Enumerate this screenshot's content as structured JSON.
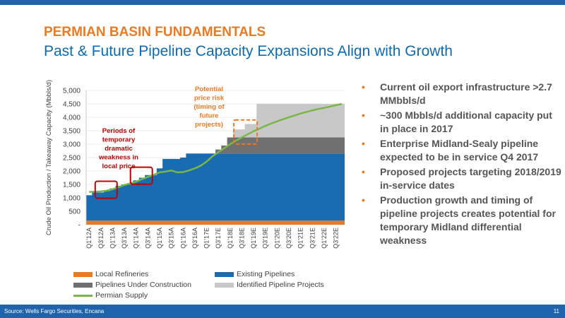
{
  "slide": {
    "title": "PERMIAN BASIN FUNDAMENTALS",
    "subtitle": "Past & Future Pipeline Capacity Expansions Align with Growth",
    "source": "Source: Wells Fargo Securities, Encana",
    "page_number": "11"
  },
  "colors": {
    "accent_orange": "#ec7a22",
    "title_blue": "#0b6cb4",
    "bar_blue": "#1a6cb0",
    "bottom_bar": "#1f63ad",
    "annotation_red": "#c00000"
  },
  "bullets": [
    "Current oil export infrastructure >2.7 MMbbls/d",
    "~300 Mbbls/d additional capacity put in place in 2017",
    "Enterprise Midland-Sealy pipeline expected to be in service Q4 2017",
    "Proposed projects targeting 2018/2019 in-service dates",
    "Production growth and timing of pipeline projects creates potential for temporary Midland differential weakness"
  ],
  "bullet_marker": "•",
  "chart_data": {
    "type": "area",
    "ylabel": "Crude Oil Production / Takeaway Capacity (Mbbls/d)",
    "ylim": [
      0,
      5000
    ],
    "yticks": [
      0,
      500,
      1000,
      1500,
      2000,
      2500,
      3000,
      3500,
      4000,
      4500,
      5000
    ],
    "ytick_labels": [
      "-",
      "500",
      "1,000",
      "1,500",
      "2,000",
      "2,500",
      "3,000",
      "3,500",
      "4,000",
      "4,500",
      "5,000"
    ],
    "grid": true,
    "legend_position": "bottom",
    "categories": [
      "Q1'12A",
      "Q2'12A",
      "Q3'12A",
      "Q4'12A",
      "Q1'13A",
      "Q2'13A",
      "Q3'13A",
      "Q4'13A",
      "Q1'14A",
      "Q2'14A",
      "Q3'14A",
      "Q4'14A",
      "Q1'15A",
      "Q2'15A",
      "Q3'15A",
      "Q4'15A",
      "Q1'16A",
      "Q2'16A",
      "Q3'16A",
      "Q4'16A",
      "Q1'17E",
      "Q2'17E",
      "Q3'17E",
      "Q4'17E",
      "Q1'18E",
      "Q2'18E",
      "Q3'18E",
      "Q4'18E",
      "Q1'19E",
      "Q2'19E",
      "Q3'19E",
      "Q4'19E",
      "Q1'20E",
      "Q2'20E",
      "Q3'20E",
      "Q4'20E",
      "Q1'21E",
      "Q2'21E",
      "Q3'21E",
      "Q4'21E",
      "Q1'22E",
      "Q2'22E",
      "Q3'22E",
      "Q4'22E"
    ],
    "tick_labels_every": 2,
    "series": [
      {
        "name": "Local Refineries",
        "kind": "area",
        "color": "#ec7a22",
        "values": [
          150,
          150,
          150,
          150,
          150,
          150,
          150,
          150,
          150,
          150,
          150,
          150,
          150,
          150,
          150,
          150,
          150,
          150,
          150,
          150,
          150,
          150,
          150,
          150,
          150,
          150,
          150,
          150,
          150,
          150,
          150,
          150,
          150,
          150,
          150,
          150,
          150,
          150,
          150,
          150,
          150,
          150,
          150,
          150
        ]
      },
      {
        "name": "Existing Pipelines",
        "kind": "area",
        "color": "#1a6cb0",
        "values": [
          950,
          1050,
          1050,
          1100,
          1200,
          1300,
          1350,
          1350,
          1500,
          1600,
          1700,
          1700,
          1950,
          2300,
          2300,
          2300,
          2350,
          2500,
          2500,
          2500,
          2500,
          2500,
          2500,
          2500,
          2500,
          2500,
          2500,
          2500,
          2500,
          2500,
          2500,
          2500,
          2500,
          2500,
          2500,
          2500,
          2500,
          2500,
          2500,
          2500,
          2500,
          2500,
          2500,
          2500
        ]
      },
      {
        "name": "Pipelines Under Construction",
        "kind": "area",
        "color": "#707070",
        "values": [
          0,
          0,
          0,
          0,
          0,
          0,
          0,
          0,
          0,
          0,
          0,
          0,
          0,
          0,
          0,
          0,
          0,
          0,
          0,
          0,
          0,
          0,
          150,
          300,
          600,
          600,
          600,
          600,
          600,
          600,
          600,
          600,
          600,
          600,
          600,
          600,
          600,
          600,
          600,
          600,
          600,
          600,
          600,
          600
        ]
      },
      {
        "name": "Identified Pipeline Projects",
        "kind": "area",
        "color": "#c8c8c8",
        "values": [
          0,
          0,
          0,
          0,
          0,
          0,
          0,
          0,
          0,
          0,
          0,
          0,
          0,
          0,
          0,
          0,
          0,
          0,
          0,
          0,
          0,
          0,
          0,
          0,
          0,
          300,
          300,
          500,
          500,
          1250,
          1250,
          1250,
          1250,
          1250,
          1250,
          1250,
          1250,
          1250,
          1250,
          1250,
          1250,
          1250,
          1250,
          1250
        ]
      },
      {
        "name": "Permian Supply",
        "kind": "line",
        "color": "#7ab648",
        "values": [
          1220,
          1230,
          1240,
          1270,
          1320,
          1400,
          1480,
          1540,
          1600,
          1700,
          1780,
          1860,
          1950,
          1980,
          2020,
          1950,
          1960,
          2020,
          2100,
          2200,
          2350,
          2550,
          2700,
          2850,
          3000,
          3130,
          3250,
          3370,
          3480,
          3580,
          3680,
          3770,
          3850,
          3930,
          4000,
          4070,
          4140,
          4200,
          4260,
          4310,
          4350,
          4400,
          4450,
          4500
        ]
      }
    ],
    "annotations": [
      {
        "label": "Periods of temporary dramatic weakness in local price",
        "color": "#c00000"
      },
      {
        "label": "Potential price risk (timing of future projects)",
        "color": "#ec7a22"
      }
    ]
  }
}
